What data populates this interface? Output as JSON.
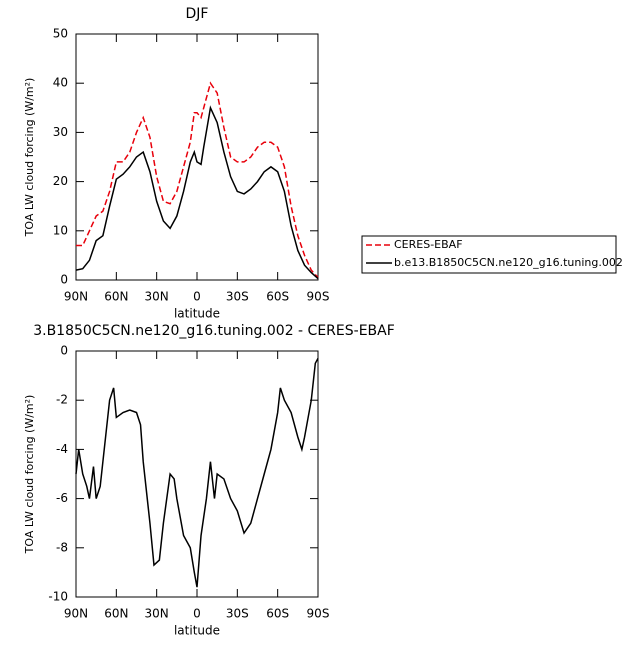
{
  "chart_data": [
    {
      "type": "line",
      "title": "DJF",
      "xlabel": "latitude",
      "ylabel": "TOA LW cloud forcing (W/m²)",
      "x": [
        90,
        85,
        80,
        75,
        70,
        65,
        60,
        55,
        50,
        45,
        40,
        35,
        30,
        25,
        20,
        15,
        10,
        5,
        2,
        0,
        -3,
        -5,
        -10,
        -15,
        -20,
        -25,
        -30,
        -35,
        -40,
        -45,
        -50,
        -55,
        -60,
        -65,
        -70,
        -75,
        -80,
        -85,
        -90
      ],
      "series": [
        {
          "name": "CERES-EBAF",
          "color": "#e8000b",
          "linestyle": "dashed",
          "values": [
            7,
            7,
            10,
            13,
            14,
            18,
            24,
            24,
            26,
            30,
            33,
            29,
            21,
            16,
            15.5,
            18,
            23,
            28,
            34,
            34,
            33,
            35,
            40,
            38,
            31,
            25,
            24,
            24,
            25,
            27,
            28,
            28,
            27,
            23,
            15,
            9,
            5,
            2,
            0.5
          ]
        },
        {
          "name": "b.e13.B1850C5CN.ne120_g16.tuning.002",
          "color": "#000000",
          "linestyle": "solid",
          "values": [
            2,
            2.3,
            4,
            8,
            9,
            15,
            20.5,
            21.5,
            23,
            25,
            26,
            22,
            16,
            12,
            10.5,
            13,
            18,
            24,
            26,
            24,
            23.5,
            27,
            35,
            32,
            26,
            21,
            18,
            17.5,
            18.5,
            20,
            22,
            23,
            22,
            18,
            11,
            6,
            3,
            1.5,
            0.3
          ]
        }
      ],
      "xlim": [
        90,
        -90
      ],
      "xticks": [
        {
          "value": 90,
          "label": "90N"
        },
        {
          "value": 60,
          "label": "60N"
        },
        {
          "value": 30,
          "label": "30N"
        },
        0,
        {
          "value": -30,
          "label": "30S"
        },
        {
          "value": -60,
          "label": "60S"
        },
        {
          "value": -90,
          "label": "90S"
        }
      ],
      "ylim": [
        0,
        50
      ],
      "yticks": [
        0,
        10,
        20,
        30,
        40,
        50
      ],
      "legend": "right"
    },
    {
      "type": "line",
      "title": "3.B1850C5CN.ne120_g16.tuning.002 - CERES-EBAF",
      "xlabel": "latitude",
      "ylabel": "TOA LW cloud forcing (W/m²)",
      "x": [
        90,
        88,
        85,
        82,
        80,
        77,
        75,
        72,
        70,
        65,
        62,
        60,
        55,
        50,
        45,
        42,
        40,
        35,
        32,
        28,
        25,
        20,
        17,
        15,
        10,
        5,
        2,
        0,
        -3,
        -7,
        -10,
        -13,
        -15,
        -20,
        -25,
        -30,
        -35,
        -40,
        -45,
        -50,
        -55,
        -60,
        -62,
        -65,
        -70,
        -75,
        -78,
        -80,
        -85,
        -88,
        -90
      ],
      "series": [
        {
          "name": "difference",
          "color": "#000000",
          "linestyle": "solid",
          "values": [
            -5,
            -4,
            -5,
            -5.5,
            -6,
            -4.7,
            -6,
            -5.5,
            -4.5,
            -2,
            -1.5,
            -2.7,
            -2.5,
            -2.4,
            -2.5,
            -3,
            -4.5,
            -7,
            -8.7,
            -8.5,
            -7,
            -5,
            -5.2,
            -6,
            -7.5,
            -8,
            -9,
            -9.6,
            -7.5,
            -6,
            -4.5,
            -6,
            -5,
            -5.2,
            -6,
            -6.5,
            -7.4,
            -7,
            -6,
            -5,
            -4,
            -2.5,
            -1.5,
            -2,
            -2.5,
            -3.5,
            -4,
            -3.5,
            -2,
            -0.5,
            -0.3
          ]
        }
      ],
      "xlim": [
        90,
        -90
      ],
      "xticks": [
        {
          "value": 90,
          "label": "90N"
        },
        {
          "value": 60,
          "label": "60N"
        },
        {
          "value": 30,
          "label": "30N"
        },
        0,
        {
          "value": -30,
          "label": "30S"
        },
        {
          "value": -60,
          "label": "60S"
        },
        {
          "value": -90,
          "label": "90S"
        }
      ],
      "ylim": [
        -10,
        0
      ],
      "yticks": [
        -10,
        -8,
        -6,
        -4,
        -2,
        0
      ]
    }
  ]
}
